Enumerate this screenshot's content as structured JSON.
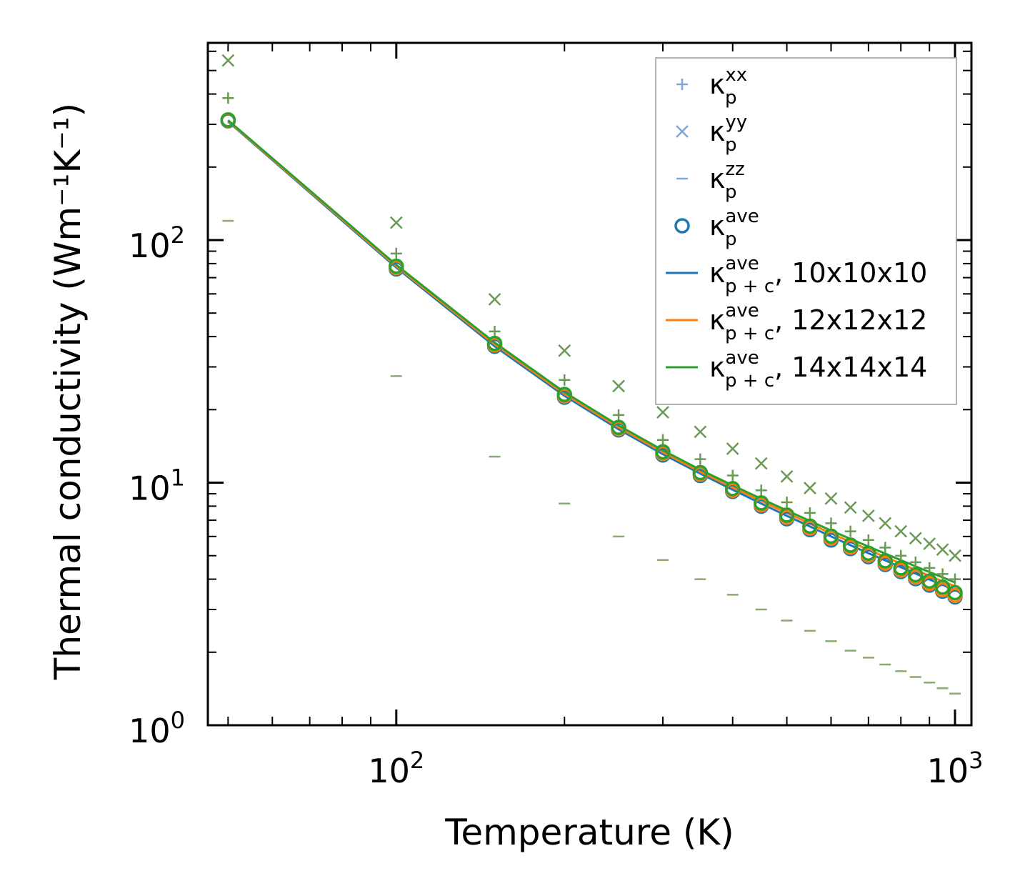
{
  "chart_data": {
    "type": "scatter",
    "xlabel": "Temperature (K)",
    "ylabel": "Thermal conductivity (Wm⁻¹K⁻¹)",
    "xscale": "log",
    "yscale": "log",
    "xlim": [
      46,
      1070
    ],
    "ylim": [
      1,
      650
    ],
    "x_ticks": [
      {
        "value": 100,
        "base": "10",
        "exp": "2"
      },
      {
        "value": 1000,
        "base": "10",
        "exp": "3"
      }
    ],
    "y_ticks": [
      {
        "value": 1,
        "base": "10",
        "exp": "0"
      },
      {
        "value": 10,
        "base": "10",
        "exp": "1"
      },
      {
        "value": 100,
        "base": "10",
        "exp": "2"
      }
    ],
    "x": [
      50,
      100,
      150,
      200,
      250,
      300,
      350,
      400,
      450,
      500,
      550,
      600,
      650,
      700,
      750,
      800,
      850,
      900,
      950,
      1000
    ],
    "series": [
      {
        "name": "kp_xx",
        "kind": "plus",
        "color": "#6a9a56",
        "values": [
          385,
          88,
          42,
          26.5,
          19,
          15,
          12.5,
          10.7,
          9.3,
          8.3,
          7.5,
          6.8,
          6.3,
          5.8,
          5.4,
          5.0,
          4.7,
          4.45,
          4.2,
          4.0
        ]
      },
      {
        "name": "kp_yy",
        "kind": "cross",
        "color": "#6a9a56",
        "values": [
          550,
          118,
          57,
          35,
          25,
          19.5,
          16.2,
          13.8,
          12.0,
          10.6,
          9.5,
          8.6,
          7.9,
          7.3,
          6.8,
          6.3,
          5.9,
          5.6,
          5.3,
          5.0
        ]
      },
      {
        "name": "kp_zz",
        "kind": "dash",
        "color": "#8aaa72",
        "values": [
          120,
          27.5,
          12.8,
          8.2,
          6.0,
          4.8,
          4.0,
          3.45,
          3.0,
          2.7,
          2.45,
          2.22,
          2.03,
          1.9,
          1.78,
          1.67,
          1.58,
          1.5,
          1.42,
          1.35
        ]
      },
      {
        "name": "kp_ave_10",
        "kind": "circle",
        "color": "#1f77b4",
        "values": [
          310,
          76,
          36.5,
          22.5,
          16.5,
          13.0,
          10.7,
          9.2,
          8.0,
          7.1,
          6.4,
          5.8,
          5.35,
          4.95,
          4.6,
          4.3,
          4.02,
          3.78,
          3.57,
          3.38
        ]
      },
      {
        "name": "kp_ave_12",
        "kind": "circle",
        "color": "#ff7f0e",
        "values": [
          312,
          77,
          37,
          22.8,
          16.7,
          13.2,
          10.85,
          9.3,
          8.1,
          7.2,
          6.5,
          5.9,
          5.42,
          5.02,
          4.66,
          4.36,
          4.08,
          3.84,
          3.62,
          3.43
        ]
      },
      {
        "name": "kp_ave_14",
        "kind": "circle",
        "color": "#2ca02c",
        "values": [
          313,
          78,
          37.5,
          23.1,
          16.9,
          13.4,
          11.0,
          9.45,
          8.25,
          7.35,
          6.62,
          6.02,
          5.53,
          5.12,
          4.76,
          4.45,
          4.17,
          3.93,
          3.71,
          3.52
        ]
      },
      {
        "name": "kpc_ave_10",
        "kind": "line",
        "color": "#1f77b4",
        "values": [
          308,
          77,
          36.5,
          22.8,
          16.6,
          13.1,
          10.9,
          9.35,
          8.2,
          7.3,
          6.6,
          6.0,
          5.52,
          5.12,
          4.78,
          4.48,
          4.22,
          3.99,
          3.79,
          3.61
        ]
      },
      {
        "name": "kpc_ave_12",
        "kind": "line",
        "color": "#ff7f0e",
        "values": [
          310,
          78,
          37.2,
          23.2,
          16.9,
          13.35,
          11.1,
          9.55,
          8.4,
          7.5,
          6.78,
          6.18,
          5.7,
          5.29,
          4.94,
          4.64,
          4.37,
          4.13,
          3.92,
          3.74
        ]
      },
      {
        "name": "kpc_ave_14",
        "kind": "line",
        "color": "#2ca02c",
        "values": [
          312,
          79,
          37.8,
          23.6,
          17.2,
          13.6,
          11.3,
          9.75,
          8.58,
          7.68,
          6.95,
          6.35,
          5.86,
          5.45,
          5.1,
          4.79,
          4.52,
          4.28,
          4.07,
          3.88
        ]
      }
    ],
    "legend": {
      "position": "top-right",
      "entries": [
        {
          "marker": "plus",
          "color": "#7fa8d8",
          "main": "κ",
          "sub": "p",
          "sup": "xx",
          "suffix": ""
        },
        {
          "marker": "cross",
          "color": "#7fa8d8",
          "main": "κ",
          "sub": "p",
          "sup": "yy",
          "suffix": ""
        },
        {
          "marker": "dash",
          "color": "#7fa8d8",
          "main": "κ",
          "sub": "p",
          "sup": "zz",
          "suffix": ""
        },
        {
          "marker": "circle",
          "color": "#1f77b4",
          "main": "κ",
          "sub": "p",
          "sup": "ave",
          "suffix": ""
        },
        {
          "marker": "line",
          "color": "#1f77b4",
          "main": "κ",
          "sub": "p + c",
          "sup": "ave",
          "suffix": ", 10x10x10"
        },
        {
          "marker": "line",
          "color": "#ff7f0e",
          "main": "κ",
          "sub": "p + c",
          "sup": "ave",
          "suffix": ", 12x12x12"
        },
        {
          "marker": "line",
          "color": "#2ca02c",
          "main": "κ",
          "sub": "p + c",
          "sup": "ave",
          "suffix": ", 14x14x14"
        }
      ]
    }
  }
}
